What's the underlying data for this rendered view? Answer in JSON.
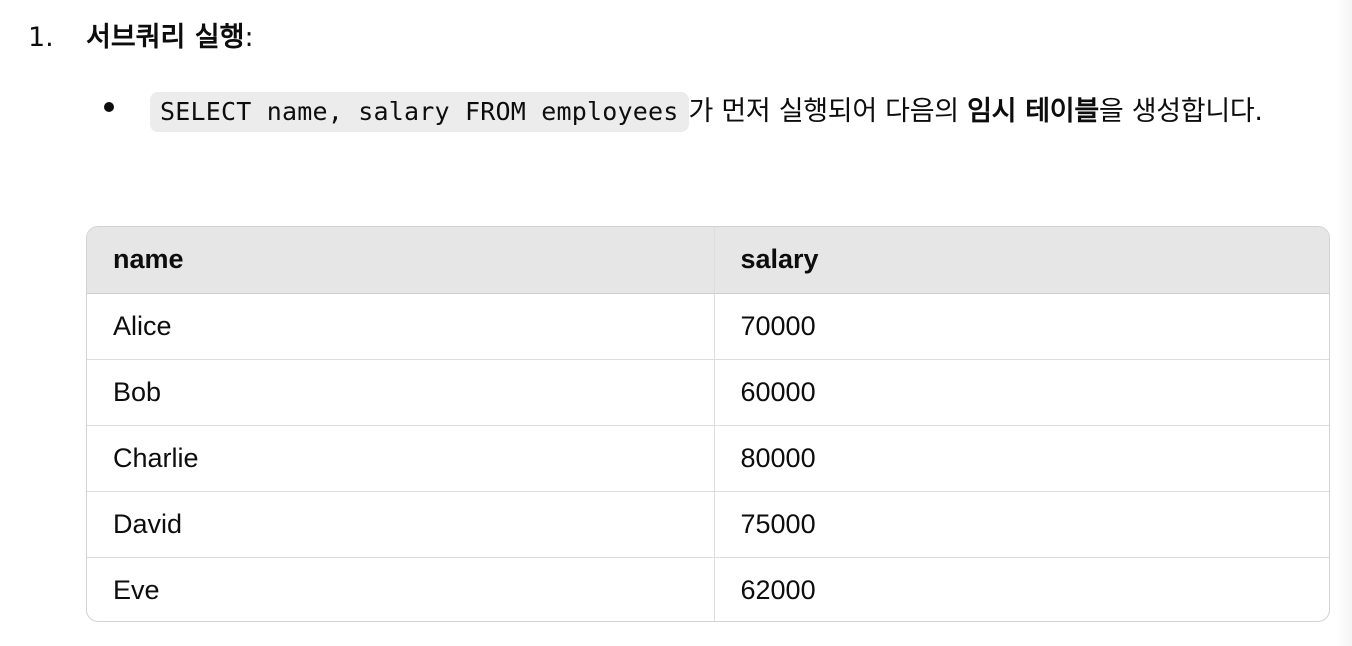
{
  "step": {
    "number": "1.",
    "title": "서브쿼리 실행",
    "colon": ":"
  },
  "bullet": {
    "code": "SELECT name, salary FROM employees",
    "text_before_bold": "가 먼저 실행되어 다음의 ",
    "bold": "임시 테이블",
    "text_after_bold": "을 생성합니다."
  },
  "table": {
    "headers": [
      "name",
      "salary"
    ],
    "rows": [
      [
        "Alice",
        "70000"
      ],
      [
        "Bob",
        "60000"
      ],
      [
        "Charlie",
        "80000"
      ],
      [
        "David",
        "75000"
      ],
      [
        "Eve",
        "62000"
      ]
    ]
  }
}
